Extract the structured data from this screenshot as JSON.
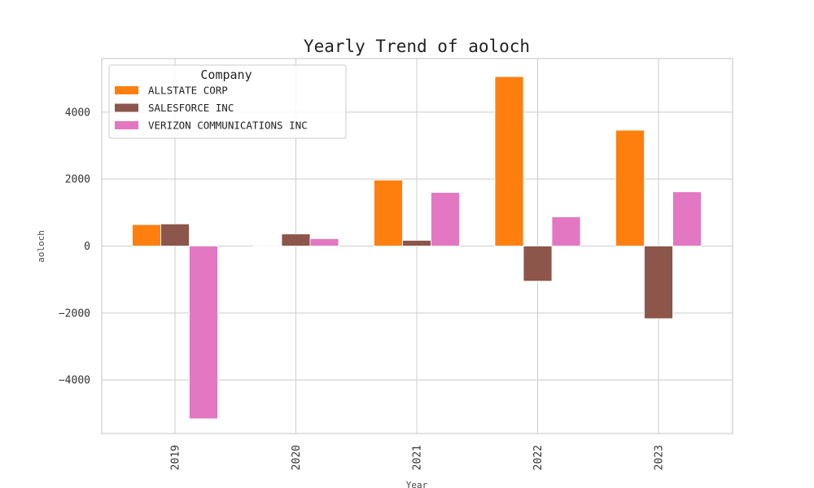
{
  "chart_data": {
    "type": "bar",
    "title": "Yearly Trend of aoloch",
    "xlabel": "Year",
    "ylabel": "aoloch",
    "categories": [
      "2019",
      "2020",
      "2021",
      "2022",
      "2023"
    ],
    "ylim": [
      -5600,
      5600
    ],
    "yticks": [
      -4000,
      -2000,
      0,
      2000,
      4000
    ],
    "ytick_labels": [
      "−4000",
      "−2000",
      "0",
      "2000",
      "4000"
    ],
    "grid": true,
    "legend": {
      "title": "Company",
      "position": "top-left"
    },
    "series": [
      {
        "name": "ALLSTATE CORP",
        "color": "#ff7f0e",
        "values": [
          640,
          20,
          1970,
          5060,
          3460
        ]
      },
      {
        "name": "SALESFORCE INC",
        "color": "#8c564b",
        "values": [
          660,
          360,
          170,
          -1050,
          -2170
        ]
      },
      {
        "name": "VERIZON COMMUNICATIONS INC",
        "color": "#e377c2",
        "values": [
          -5160,
          220,
          1600,
          870,
          1620
        ]
      }
    ]
  }
}
